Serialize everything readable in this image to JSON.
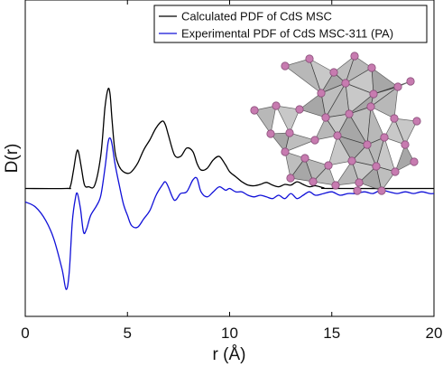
{
  "chart_data": {
    "type": "line",
    "xlabel": "r (Å)",
    "ylabel": "D(r)",
    "xlim": [
      0,
      20
    ],
    "x_ticks": [
      "0",
      "5",
      "10",
      "15",
      "20"
    ],
    "y_ticks_shown": false,
    "grid": false,
    "legend_position": "top-right",
    "series": [
      {
        "name": "Calculated PDF of CdS MSC",
        "color": "#000000",
        "x": [
          0,
          2.0,
          2.2,
          2.35,
          2.5,
          2.6,
          2.75,
          2.9,
          3.1,
          3.4,
          3.7,
          3.9,
          4.05,
          4.15,
          4.25,
          4.4,
          4.6,
          4.8,
          5.0,
          5.2,
          5.5,
          5.8,
          6.1,
          6.4,
          6.7,
          6.85,
          7.0,
          7.3,
          7.6,
          7.9,
          8.2,
          8.4,
          8.6,
          8.9,
          9.2,
          9.5,
          9.8,
          10.0,
          10.3,
          10.6,
          10.9,
          11.2,
          11.5,
          11.8,
          12.1,
          12.4,
          12.7,
          13.0,
          13.3,
          13.6,
          13.9,
          14.2,
          14.6,
          15.0,
          20.0
        ],
        "y": [
          0,
          0,
          0.05,
          0.5,
          1.05,
          1.1,
          0.6,
          0.1,
          0.05,
          0.1,
          1.0,
          2.4,
          2.95,
          2.8,
          2.0,
          1.05,
          0.65,
          0.5,
          0.45,
          0.5,
          0.75,
          1.15,
          1.45,
          1.8,
          2.0,
          1.9,
          1.6,
          1.0,
          0.95,
          1.2,
          1.1,
          0.75,
          0.55,
          0.6,
          0.85,
          0.95,
          0.7,
          0.5,
          0.35,
          0.2,
          0.1,
          0.08,
          0.12,
          0.18,
          0.1,
          0.05,
          0.12,
          0.1,
          0.2,
          0.12,
          0.05,
          0.08,
          0.02,
          0,
          0
        ]
      },
      {
        "name": "Experimental PDF of CdS MSC-311 (PA)",
        "color": "#1010d8",
        "x": [
          0,
          0.5,
          1.0,
          1.4,
          1.8,
          2.0,
          2.15,
          2.3,
          2.45,
          2.55,
          2.7,
          2.85,
          3.0,
          3.2,
          3.5,
          3.7,
          3.9,
          4.05,
          4.15,
          4.25,
          4.4,
          4.6,
          4.8,
          5.0,
          5.2,
          5.5,
          5.8,
          6.1,
          6.4,
          6.7,
          6.85,
          7.0,
          7.3,
          7.6,
          7.9,
          8.2,
          8.4,
          8.6,
          8.9,
          9.2,
          9.5,
          9.8,
          10.0,
          10.3,
          10.6,
          10.9,
          11.2,
          11.5,
          11.8,
          12.1,
          12.4,
          12.7,
          13.0,
          13.3,
          13.6,
          13.9,
          14.2,
          14.6,
          15.0,
          15.4,
          15.8,
          16.2,
          16.6,
          17.0,
          17.4,
          17.8,
          18.2,
          18.6,
          19.0,
          19.4,
          19.8,
          20.0
        ],
        "y": [
          -0.4,
          -0.55,
          -0.95,
          -1.5,
          -2.4,
          -3.0,
          -2.5,
          -1.0,
          -0.3,
          -0.15,
          -0.6,
          -1.3,
          -1.2,
          -0.8,
          -0.5,
          -0.2,
          0.6,
          1.35,
          1.5,
          1.3,
          0.7,
          0.1,
          -0.45,
          -0.8,
          -1.1,
          -1.15,
          -0.9,
          -0.65,
          -0.2,
          0.1,
          0.2,
          0.05,
          -0.35,
          -0.15,
          -0.1,
          0.25,
          0.3,
          -0.1,
          -0.25,
          -0.1,
          0.05,
          -0.05,
          0.0,
          -0.1,
          -0.1,
          -0.2,
          -0.25,
          -0.2,
          -0.25,
          -0.3,
          -0.2,
          -0.3,
          -0.15,
          -0.3,
          -0.2,
          -0.1,
          -0.2,
          -0.15,
          -0.1,
          -0.2,
          -0.15,
          -0.15,
          -0.1,
          -0.15,
          -0.05,
          -0.1,
          -0.15,
          -0.1,
          -0.15,
          -0.1,
          -0.15,
          -0.15
        ]
      }
    ]
  },
  "legend": {
    "entries": [
      {
        "label": "Calculated PDF of CdS MSC",
        "color": "#000000"
      },
      {
        "label": "Experimental PDF of CdS MSC-311 (PA)",
        "color": "#1010d8"
      }
    ]
  },
  "inset": {
    "kind": "molecular-cluster-structure",
    "polyhedron_color": "#7d7d7d",
    "atom_color": "#c77bb0"
  }
}
